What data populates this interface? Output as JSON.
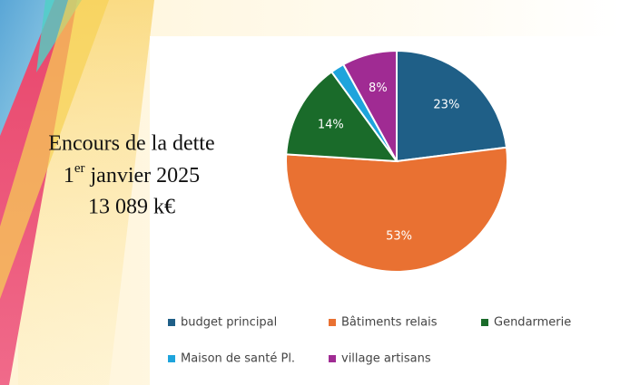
{
  "chart_data": {
    "type": "pie",
    "title": "Encours de la dette",
    "date": {
      "number": "1",
      "sup": "er",
      "rest": "janvier 2025"
    },
    "total": "13 089 k€",
    "categories": [
      "budget principal",
      "Bâtiments relais",
      "Gendarmerie",
      "Maison de santé Pl.",
      "village artisans"
    ],
    "values": [
      23,
      53,
      14,
      2,
      8
    ],
    "value_labels": [
      "23%",
      "53%",
      "14%",
      null,
      "8%"
    ],
    "colors": [
      "#1f5f87",
      "#e97132",
      "#1a6b2a",
      "#1ea4dc",
      "#a02b93"
    ],
    "legend": "bottom"
  }
}
